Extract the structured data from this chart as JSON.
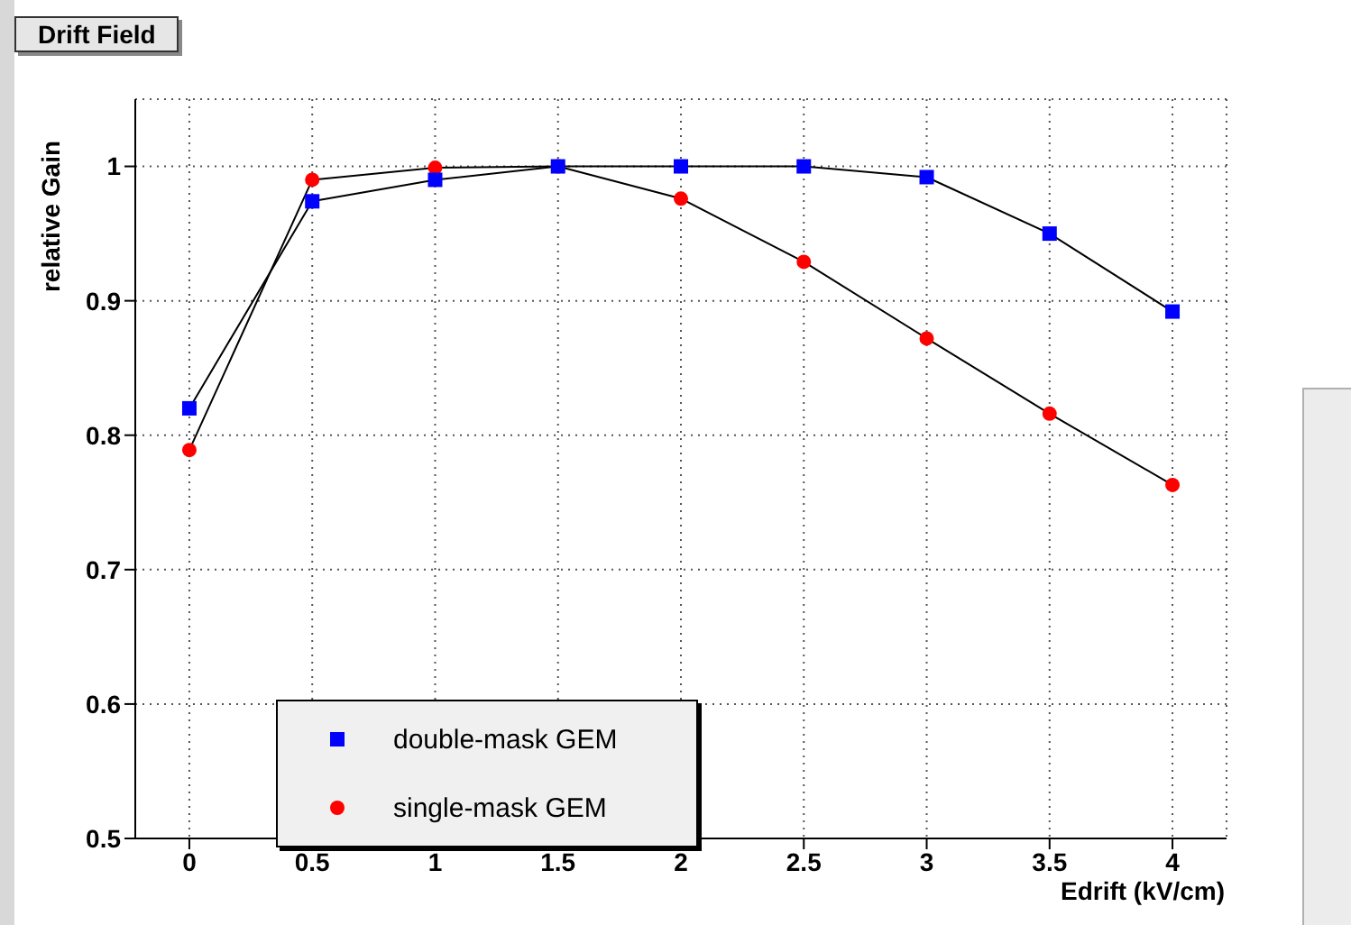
{
  "chart_data": {
    "type": "line",
    "title": "Drift Field",
    "xlabel": "Edrift (kV/cm)",
    "ylabel": "relative Gain",
    "x": [
      0,
      0.5,
      1,
      1.5,
      2,
      2.5,
      3,
      3.5,
      4
    ],
    "series": [
      {
        "name": "double-mask GEM",
        "color": "#0000ff",
        "marker": "square",
        "values": [
          0.82,
          0.974,
          0.99,
          1,
          1,
          1,
          0.992,
          0.95,
          0.892
        ]
      },
      {
        "name": "single-mask GEM",
        "color": "#ff0000",
        "marker": "circle",
        "values": [
          0.789,
          0.99,
          0.999,
          1,
          0.976,
          0.929,
          0.872,
          0.816,
          0.763
        ]
      }
    ],
    "xlim": [
      -0.22,
      4.22
    ],
    "xticks": [
      0,
      0.5,
      1,
      1.5,
      2,
      2.5,
      3,
      3.5,
      4
    ],
    "ylim": [
      0.5,
      1.05
    ],
    "yticks": [
      0.5,
      0.6,
      0.7,
      0.8,
      0.9,
      1
    ],
    "grid": true,
    "legend": "bottom left",
    "line_style": "solid"
  }
}
